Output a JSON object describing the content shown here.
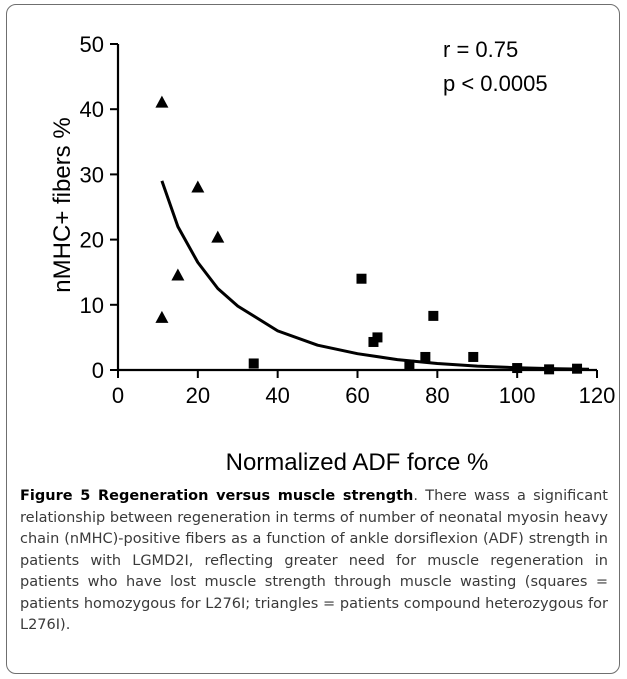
{
  "chart_data": {
    "type": "scatter",
    "xlabel": "Normalized ADF force %",
    "ylabel": "nMHC+ fibers %",
    "xlim": [
      0,
      120
    ],
    "ylim": [
      0,
      50
    ],
    "xticks": [
      "0",
      "20",
      "40",
      "60",
      "80",
      "100",
      "120"
    ],
    "yticks": [
      "0",
      "10",
      "20",
      "30",
      "40",
      "50"
    ],
    "annotations": [
      "r = 0.75",
      "p < 0.0005"
    ],
    "series": [
      {
        "marker": "triangle",
        "points": [
          {
            "x": 11,
            "y": 41
          },
          {
            "x": 11,
            "y": 8
          },
          {
            "x": 15,
            "y": 14.5
          },
          {
            "x": 20,
            "y": 28
          },
          {
            "x": 25,
            "y": 20.3
          }
        ]
      },
      {
        "marker": "square",
        "points": [
          {
            "x": 34,
            "y": 1
          },
          {
            "x": 61,
            "y": 14
          },
          {
            "x": 64,
            "y": 4.3
          },
          {
            "x": 65,
            "y": 5
          },
          {
            "x": 73,
            "y": 0.8
          },
          {
            "x": 77,
            "y": 2
          },
          {
            "x": 79,
            "y": 8.3
          },
          {
            "x": 89,
            "y": 2
          },
          {
            "x": 100,
            "y": 0.3
          },
          {
            "x": 108,
            "y": 0.1
          },
          {
            "x": 115,
            "y": 0.2
          }
        ]
      }
    ],
    "fit": {
      "type": "exponential",
      "points": [
        {
          "x": 11,
          "y": 29
        },
        {
          "x": 15,
          "y": 22
        },
        {
          "x": 20,
          "y": 16.5
        },
        {
          "x": 25,
          "y": 12.5
        },
        {
          "x": 30,
          "y": 9.8
        },
        {
          "x": 40,
          "y": 6.0
        },
        {
          "x": 50,
          "y": 3.8
        },
        {
          "x": 60,
          "y": 2.5
        },
        {
          "x": 70,
          "y": 1.6
        },
        {
          "x": 80,
          "y": 1.0
        },
        {
          "x": 90,
          "y": 0.6
        },
        {
          "x": 100,
          "y": 0.35
        },
        {
          "x": 110,
          "y": 0.2
        },
        {
          "x": 118,
          "y": 0.1
        }
      ]
    }
  },
  "caption": {
    "title": "Figure 5 Regeneration versus muscle strength",
    "text": ". There wass a significant relationship between regeneration in terms of number of neonatal myosin heavy chain (nMHC)-positive fibers as a function of ankle dorsiflexion (ADF) strength in patients with LGMD2I, reflecting greater need for muscle regeneration in patients who have lost muscle strength through muscle wasting (squares = patients homozygous for L276I; triangles = patients compound heterozygous for L276I)."
  }
}
